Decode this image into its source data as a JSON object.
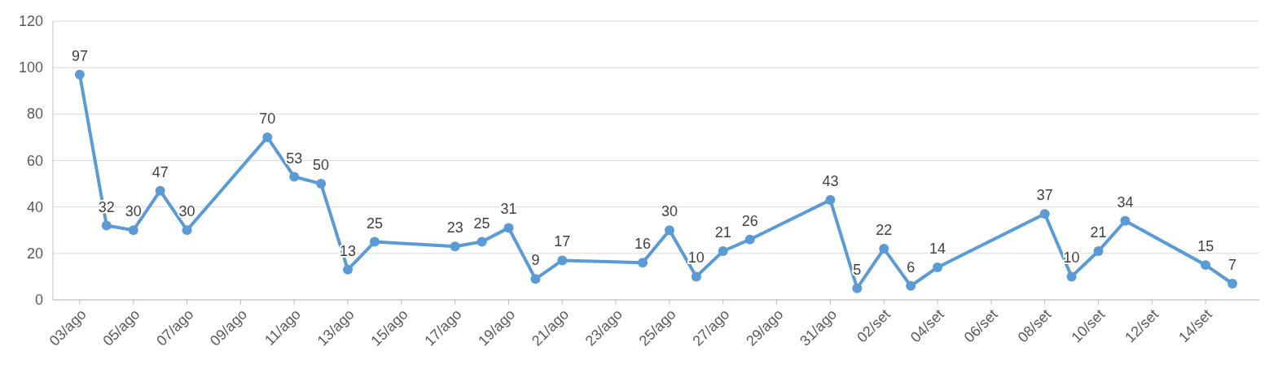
{
  "chart_data": {
    "type": "line",
    "x": [
      "--08-03",
      "--08-04",
      "--08-05",
      "--08-06",
      "--08-07",
      "--08-10",
      "--08-11",
      "--08-12",
      "--08-13",
      "--08-14",
      "--08-17",
      "--08-18",
      "--08-19",
      "--08-20",
      "--08-21",
      "--08-24",
      "--08-25",
      "--08-26",
      "--08-27",
      "--08-28",
      "--08-31",
      "--09-01",
      "--09-02",
      "--09-03",
      "--09-04",
      "--09-08",
      "--09-09",
      "--09-10",
      "--09-11",
      "--09-14",
      "--09-15"
    ],
    "series": [
      {
        "color": "#5b9bd5",
        "values": [
          97,
          32,
          30,
          47,
          30,
          70,
          53,
          50,
          13,
          25,
          23,
          25,
          31,
          9,
          17,
          16,
          30,
          10,
          21,
          26,
          43,
          5,
          22,
          6,
          14,
          37,
          10,
          21,
          34,
          15,
          7
        ]
      }
    ],
    "xlim": [
      "--08-02",
      "--09-16"
    ],
    "xticks": [
      {
        "value": "--08-03",
        "label": "03/ago"
      },
      {
        "value": "--08-05",
        "label": "05/ago"
      },
      {
        "value": "--08-07",
        "label": "07/ago"
      },
      {
        "value": "--08-09",
        "label": "09/ago"
      },
      {
        "value": "--08-11",
        "label": "11/ago"
      },
      {
        "value": "--08-13",
        "label": "13/ago"
      },
      {
        "value": "--08-15",
        "label": "15/ago"
      },
      {
        "value": "--08-17",
        "label": "17/ago"
      },
      {
        "value": "--08-19",
        "label": "19/ago"
      },
      {
        "value": "--08-21",
        "label": "21/ago"
      },
      {
        "value": "--08-23",
        "label": "23/ago"
      },
      {
        "value": "--08-25",
        "label": "25/ago"
      },
      {
        "value": "--08-27",
        "label": "27/ago"
      },
      {
        "value": "--08-29",
        "label": "29/ago"
      },
      {
        "value": "--08-31",
        "label": "31/ago"
      },
      {
        "value": "--09-02",
        "label": "02/set"
      },
      {
        "value": "--09-04",
        "label": "04/set"
      },
      {
        "value": "--09-06",
        "label": "06/set"
      },
      {
        "value": "--09-08",
        "label": "08/set"
      },
      {
        "value": "--09-10",
        "label": "10/set"
      },
      {
        "value": "--09-12",
        "label": "12/set"
      },
      {
        "value": "--09-14",
        "label": "14/set"
      }
    ],
    "ylim": [
      0,
      120
    ],
    "yticks": [
      0,
      20,
      40,
      60,
      80,
      100,
      120
    ],
    "grid": "y",
    "data_labels": true,
    "marker": "circle",
    "line_style": "solid"
  }
}
